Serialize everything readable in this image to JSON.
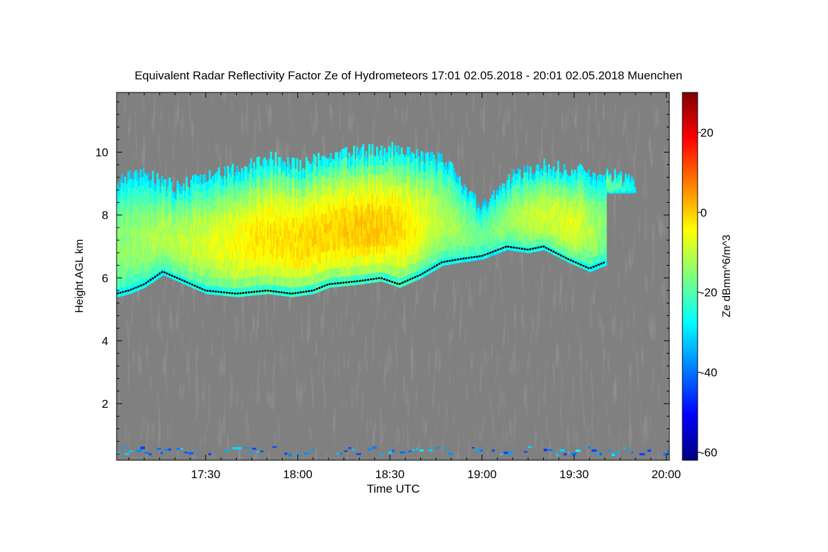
{
  "chart_data": {
    "type": "heatmap",
    "title": "Equivalent Radar Reflectivity Factor Ze of Hydrometeors   17:01 02.05.2018 - 20:01 02.05.2018 Muenchen",
    "xlabel": "Time UTC",
    "ylabel": "Height AGL km",
    "colorbar_label": "Ze dBmm^6/m^3",
    "x_range_minutes_utc": [
      1021,
      1201
    ],
    "x_ticks": [
      {
        "label": "17:30",
        "minutes": 1050
      },
      {
        "label": "18:00",
        "minutes": 1080
      },
      {
        "label": "18:30",
        "minutes": 1110
      },
      {
        "label": "19:00",
        "minutes": 1140
      },
      {
        "label": "19:30",
        "minutes": 1170
      },
      {
        "label": "20:00",
        "minutes": 1200
      }
    ],
    "ylim": [
      0.2,
      11.9
    ],
    "y_ticks": [
      "2",
      "4",
      "6",
      "8",
      "10"
    ],
    "y_tick_values": [
      2,
      4,
      6,
      8,
      10
    ],
    "colorbar_range": [
      -62,
      30
    ],
    "colorbar_ticks": [
      "20",
      "0",
      "-20",
      "-40",
      "-60"
    ],
    "colorbar_tick_values": [
      20,
      0,
      -20,
      -40,
      -60
    ],
    "background_color": "#808080",
    "colormap": [
      "#00007f",
      "#0000ff",
      "#007fff",
      "#00ffff",
      "#7fff7f",
      "#ffff00",
      "#ff7f00",
      "#ff0000",
      "#7f0000"
    ],
    "cloud_base_line_color": "#000000",
    "cloud_top_km": [
      [
        1021,
        9.1
      ],
      [
        1030,
        9.3
      ],
      [
        1040,
        8.9
      ],
      [
        1050,
        9.2
      ],
      [
        1060,
        9.5
      ],
      [
        1070,
        9.8
      ],
      [
        1080,
        9.6
      ],
      [
        1090,
        9.9
      ],
      [
        1100,
        10.0
      ],
      [
        1110,
        10.1
      ],
      [
        1120,
        9.9
      ],
      [
        1128,
        9.7
      ],
      [
        1135,
        8.7
      ],
      [
        1140,
        8.3
      ],
      [
        1150,
        9.3
      ],
      [
        1160,
        9.6
      ],
      [
        1170,
        9.4
      ],
      [
        1180,
        9.3
      ],
      [
        1190,
        9.1
      ]
    ],
    "cloud_base_km": [
      [
        1021,
        5.5
      ],
      [
        1025,
        5.6
      ],
      [
        1030,
        5.8
      ],
      [
        1036,
        6.2
      ],
      [
        1043,
        5.9
      ],
      [
        1050,
        5.6
      ],
      [
        1060,
        5.5
      ],
      [
        1070,
        5.6
      ],
      [
        1078,
        5.5
      ],
      [
        1085,
        5.6
      ],
      [
        1090,
        5.8
      ],
      [
        1100,
        5.9
      ],
      [
        1107,
        6.0
      ],
      [
        1113,
        5.8
      ],
      [
        1120,
        6.1
      ],
      [
        1127,
        6.5
      ],
      [
        1133,
        6.6
      ],
      [
        1140,
        6.7
      ],
      [
        1148,
        7.0
      ],
      [
        1155,
        6.9
      ],
      [
        1160,
        7.0
      ],
      [
        1168,
        6.6
      ],
      [
        1175,
        6.3
      ],
      [
        1180,
        6.5
      ]
    ],
    "ze_core_profile": [
      [
        1021,
        -14
      ],
      [
        1035,
        -12
      ],
      [
        1050,
        -8
      ],
      [
        1065,
        -3
      ],
      [
        1080,
        -1
      ],
      [
        1095,
        0
      ],
      [
        1105,
        1
      ],
      [
        1115,
        -2
      ],
      [
        1125,
        -10
      ],
      [
        1140,
        -18
      ],
      [
        1155,
        -10
      ],
      [
        1170,
        -7
      ],
      [
        1180,
        -15
      ],
      [
        1190,
        -28
      ]
    ],
    "boundary_layer_echo_km": 0.4
  }
}
